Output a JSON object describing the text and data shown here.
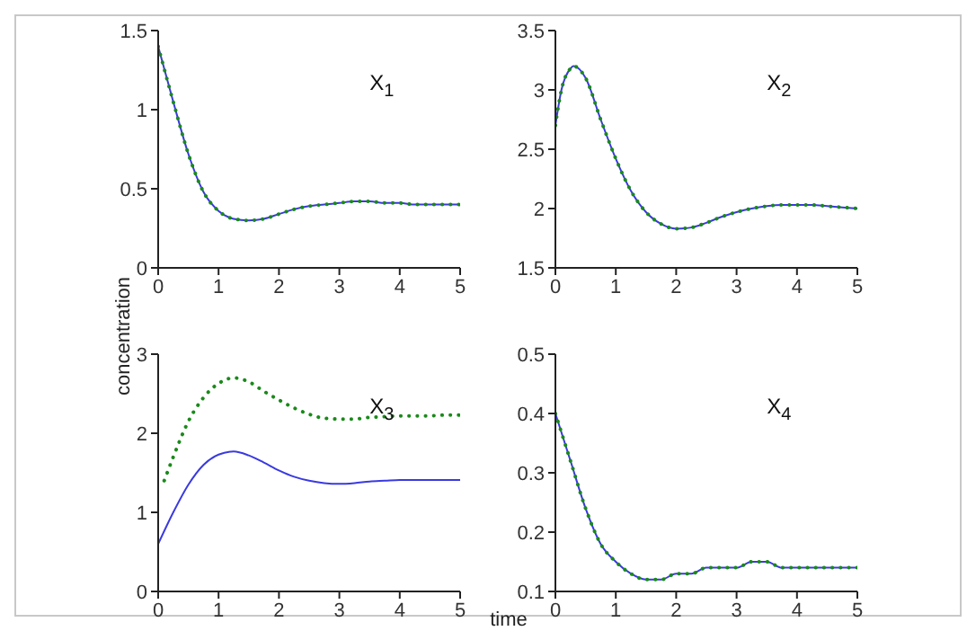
{
  "chart_data": [
    {
      "type": "line",
      "x": [
        0,
        0.25,
        0.5,
        0.75,
        1,
        1.25,
        1.5,
        1.75,
        2,
        2.25,
        2.5,
        2.75,
        3,
        3.25,
        3.5,
        3.75,
        4,
        4.25,
        4.5,
        4.75,
        5
      ],
      "series": [
        {
          "color": "#3a3ae0",
          "line_style": "solid",
          "values": [
            1.4,
            1.05,
            0.72,
            0.48,
            0.36,
            0.31,
            0.3,
            0.31,
            0.34,
            0.37,
            0.39,
            0.4,
            0.41,
            0.42,
            0.42,
            0.41,
            0.41,
            0.4,
            0.4,
            0.4,
            0.4
          ]
        },
        {
          "color": "#1a8a1a",
          "line_style": "dotted",
          "values": [
            1.4,
            1.05,
            0.72,
            0.48,
            0.36,
            0.31,
            0.3,
            0.31,
            0.34,
            0.37,
            0.39,
            0.4,
            0.41,
            0.42,
            0.42,
            0.41,
            0.41,
            0.4,
            0.4,
            0.4,
            0.4
          ]
        }
      ],
      "xlim": [
        0,
        5
      ],
      "ylim": [
        0,
        1.5
      ],
      "xticks": [
        0,
        1,
        2,
        3,
        4,
        5
      ],
      "yticks": [
        0,
        0.5,
        1,
        1.5
      ],
      "annotations": [
        "X$_{1}$"
      ]
    },
    {
      "type": "line",
      "x": [
        0,
        0.1,
        0.25,
        0.3,
        0.5,
        0.75,
        1,
        1.25,
        1.5,
        1.75,
        2,
        2.25,
        2.5,
        2.75,
        3,
        3.25,
        3.5,
        3.75,
        4,
        4.25,
        4.5,
        4.75,
        5
      ],
      "series": [
        {
          "color": "#3a3ae0",
          "line_style": "solid",
          "values": [
            2.7,
            3.0,
            3.18,
            3.2,
            3.1,
            2.75,
            2.42,
            2.15,
            1.97,
            1.87,
            1.83,
            1.84,
            1.88,
            1.93,
            1.97,
            2.0,
            2.02,
            2.03,
            2.03,
            2.03,
            2.02,
            2.01,
            2.0
          ]
        },
        {
          "color": "#1a8a1a",
          "line_style": "dotted",
          "values": [
            2.7,
            3.0,
            3.18,
            3.2,
            3.1,
            2.75,
            2.42,
            2.15,
            1.97,
            1.87,
            1.83,
            1.84,
            1.88,
            1.93,
            1.97,
            2.0,
            2.02,
            2.03,
            2.03,
            2.03,
            2.02,
            2.01,
            2.0
          ]
        }
      ],
      "xlim": [
        0,
        5
      ],
      "ylim": [
        1.5,
        3.5
      ],
      "xticks": [
        0,
        1,
        2,
        3,
        4,
        5
      ],
      "yticks": [
        1.5,
        2,
        2.5,
        3,
        3.5
      ],
      "annotations": [
        "X$_{2}$"
      ]
    },
    {
      "type": "line",
      "x": [
        0,
        0.25,
        0.5,
        0.75,
        1,
        1.25,
        1.5,
        1.75,
        2,
        2.25,
        2.5,
        2.75,
        3,
        3.25,
        3.5,
        3.75,
        4,
        4.25,
        4.5,
        4.75,
        5
      ],
      "series": [
        {
          "color": "#3a3ae0",
          "line_style": "solid",
          "values": [
            0.6,
            1.0,
            1.35,
            1.6,
            1.73,
            1.77,
            1.72,
            1.63,
            1.53,
            1.45,
            1.4,
            1.37,
            1.36,
            1.37,
            1.39,
            1.4,
            1.41,
            1.41,
            1.41,
            1.41,
            1.41
          ]
        },
        {
          "color": "#1a8a1a",
          "line_style": "dotted",
          "x": [
            0.1,
            0.25,
            0.5,
            0.75,
            1,
            1.25,
            1.5,
            1.75,
            2,
            2.25,
            2.5,
            2.75,
            3,
            3.25,
            3.5,
            3.75,
            4,
            4.25,
            4.5,
            4.75,
            5
          ],
          "values": [
            1.4,
            1.7,
            2.15,
            2.45,
            2.63,
            2.7,
            2.65,
            2.53,
            2.42,
            2.32,
            2.24,
            2.19,
            2.18,
            2.18,
            2.2,
            2.21,
            2.22,
            2.22,
            2.22,
            2.23,
            2.23
          ]
        }
      ],
      "xlim": [
        0,
        5
      ],
      "ylim": [
        0,
        3
      ],
      "xticks": [
        0,
        1,
        2,
        3,
        4,
        5
      ],
      "yticks": [
        0,
        1,
        2,
        3
      ],
      "annotations": [
        "X$_{3}$"
      ],
      "ylabel": "concentration"
    },
    {
      "type": "line",
      "x": [
        0,
        0.25,
        0.5,
        0.75,
        1,
        1.25,
        1.5,
        1.75,
        2,
        2.25,
        2.5,
        2.75,
        3,
        3.25,
        3.5,
        3.75,
        4,
        4.25,
        4.5,
        4.75,
        5
      ],
      "series": [
        {
          "color": "#3a3ae0",
          "line_style": "solid",
          "values": [
            0.4,
            0.32,
            0.24,
            0.18,
            0.15,
            0.13,
            0.12,
            0.12,
            0.13,
            0.13,
            0.14,
            0.14,
            0.14,
            0.15,
            0.15,
            0.14,
            0.14,
            0.14,
            0.14,
            0.14,
            0.14
          ]
        },
        {
          "color": "#1a8a1a",
          "line_style": "dotted",
          "values": [
            0.4,
            0.32,
            0.24,
            0.18,
            0.15,
            0.13,
            0.12,
            0.12,
            0.13,
            0.13,
            0.14,
            0.14,
            0.14,
            0.15,
            0.15,
            0.14,
            0.14,
            0.14,
            0.14,
            0.14,
            0.14
          ]
        }
      ],
      "xlim": [
        0,
        5
      ],
      "ylim": [
        0.1,
        0.5
      ],
      "xticks": [
        0,
        1,
        2,
        3,
        4,
        5
      ],
      "yticks": [
        0.1,
        0.2,
        0.3,
        0.4,
        0.5
      ],
      "annotations": [
        "X$_{4}$"
      ],
      "xlabel": "time"
    }
  ]
}
